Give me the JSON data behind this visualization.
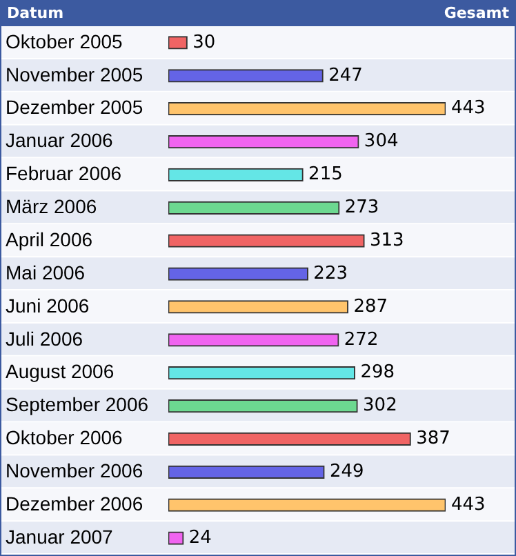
{
  "chart_data": {
    "type": "bar",
    "orientation": "horizontal",
    "ylabel": "Datum",
    "xlabel": "Gesamt",
    "data_labels": true,
    "categories": [
      "Oktober 2005",
      "November 2005",
      "Dezember 2005",
      "Januar 2006",
      "Februar 2006",
      "März 2006",
      "April 2006",
      "Mai 2006",
      "Juni 2006",
      "Juli 2006",
      "August 2006",
      "September 2006",
      "Oktober 2006",
      "November 2006",
      "Dezember 2006",
      "Januar 2007"
    ],
    "values": [
      30,
      247,
      443,
      304,
      215,
      273,
      313,
      223,
      287,
      272,
      298,
      302,
      387,
      249,
      443,
      24
    ],
    "colors": [
      "#f06464",
      "#6464e6",
      "#ffc46c",
      "#f064f0",
      "#64e6e6",
      "#6cd890",
      "#f06464",
      "#6464e6",
      "#ffc46c",
      "#f064f0",
      "#64e6e6",
      "#6cd890",
      "#f06464",
      "#6464e6",
      "#ffc46c",
      "#f064f0"
    ]
  }
}
